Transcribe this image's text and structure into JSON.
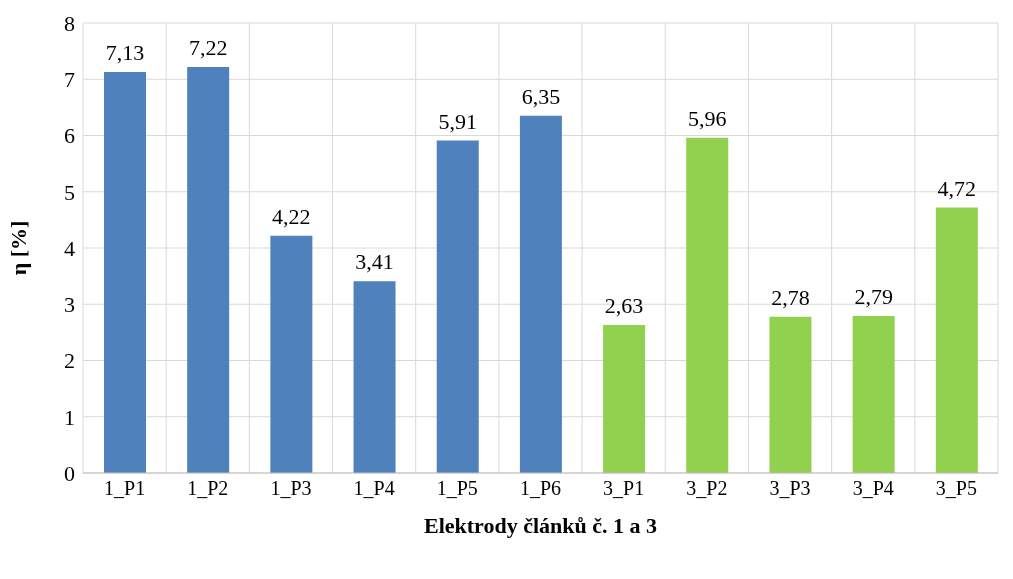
{
  "chart_data": {
    "type": "bar",
    "xlabel": "Elektrody článků č. 1 a 3",
    "ylabel": "η [%]",
    "categories": [
      "1_P1",
      "1_P2",
      "1_P3",
      "1_P4",
      "1_P5",
      "1_P6",
      "3_P1",
      "3_P2",
      "3_P3",
      "3_P4",
      "3_P5"
    ],
    "values": [
      7.13,
      7.22,
      4.22,
      3.41,
      5.91,
      6.35,
      2.63,
      5.96,
      2.78,
      2.79,
      4.72
    ],
    "colors": [
      "#4f81bd",
      "#4f81bd",
      "#4f81bd",
      "#4f81bd",
      "#4f81bd",
      "#4f81bd",
      "#92d050",
      "#92d050",
      "#92d050",
      "#92d050",
      "#92d050"
    ],
    "value_labels": [
      "7,13",
      "7,22",
      "4,22",
      "3,41",
      "5,91",
      "6,35",
      "2,63",
      "5,96",
      "2,78",
      "2,79",
      "4,72"
    ],
    "ylim": [
      0,
      8
    ],
    "yticks": [
      0,
      1,
      2,
      3,
      4,
      5,
      6,
      7,
      8
    ],
    "grid": true
  }
}
